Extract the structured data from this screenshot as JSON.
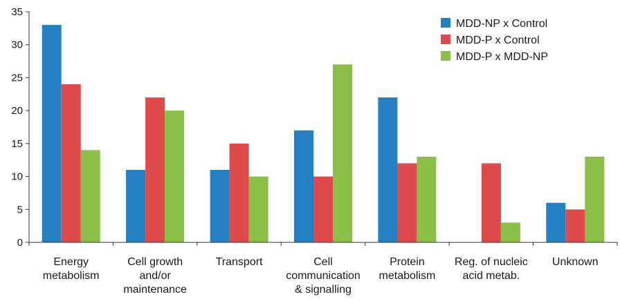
{
  "chart_data": {
    "type": "bar",
    "title": "",
    "xlabel": "",
    "ylabel": "",
    "ylim": [
      0,
      35
    ],
    "yticks": [
      0,
      5,
      10,
      15,
      20,
      25,
      30,
      35
    ],
    "grid": false,
    "legend_position": "top-right",
    "categories": [
      [
        "Energy",
        "metabolism"
      ],
      [
        "Cell growth",
        "and/or",
        "maintenance"
      ],
      [
        "Transport"
      ],
      [
        "Cell",
        "communication",
        "& signalling"
      ],
      [
        "Protein",
        "metabolism"
      ],
      [
        "Reg. of nucleic",
        "acid metab."
      ],
      [
        "Unknown"
      ]
    ],
    "series": [
      {
        "name": "MDD-NP x Control",
        "color": "#2580c3",
        "values": [
          33,
          11,
          11,
          17,
          22,
          0,
          6
        ]
      },
      {
        "name": "MDD-P x Control",
        "color": "#df4b4b",
        "values": [
          24,
          22,
          15,
          10,
          12,
          12,
          5
        ]
      },
      {
        "name": "MDD-P x MDD-NP",
        "color": "#8cbf4a",
        "values": [
          14,
          20,
          10,
          27,
          13,
          3,
          13
        ]
      }
    ]
  }
}
